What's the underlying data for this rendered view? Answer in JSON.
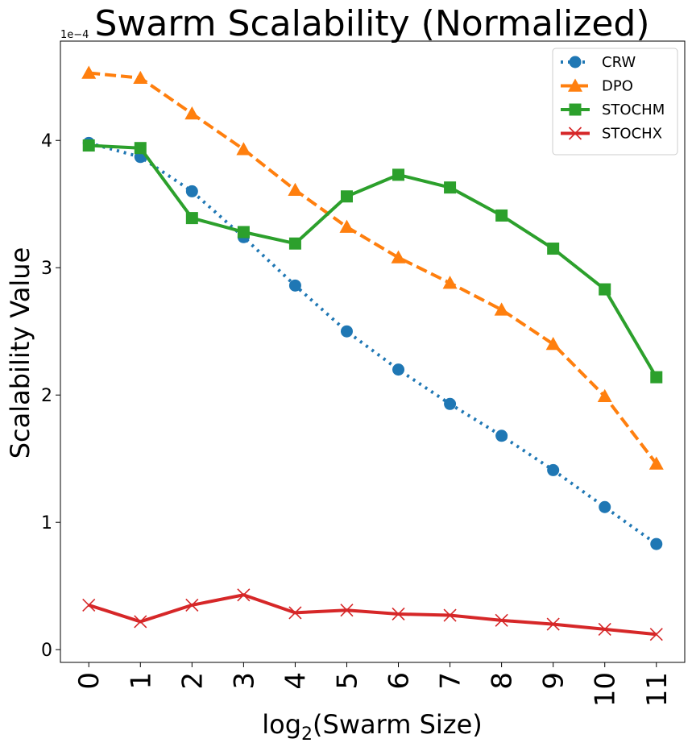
{
  "chart_data": {
    "type": "line",
    "title": "Swarm Scalability (Normalized)",
    "xlabel_prefix": "log",
    "xlabel_sub": "2",
    "xlabel_suffix": "(Swarm Size)",
    "ylabel": "Scalability Value",
    "y_multiplier_label": "1e−4",
    "x": [
      0,
      1,
      2,
      3,
      4,
      5,
      6,
      7,
      8,
      9,
      10,
      11
    ],
    "xtick_labels": [
      "0",
      "1",
      "2",
      "3",
      "4",
      "5",
      "6",
      "7",
      "8",
      "9",
      "10",
      "11"
    ],
    "yticks": [
      0,
      1,
      2,
      3,
      4
    ],
    "ytick_labels": [
      "0",
      "1",
      "2",
      "3",
      "4"
    ],
    "xlim": [
      -0.55,
      11.55
    ],
    "ylim": [
      -0.1,
      4.78
    ],
    "grid": false,
    "legend_position": "top-right",
    "series": [
      {
        "name": "CRW",
        "color": "#1f77b4",
        "dash": "dotted",
        "marker": "circle",
        "values": [
          3.98,
          3.87,
          3.6,
          3.24,
          2.86,
          2.5,
          2.2,
          1.93,
          1.68,
          1.41,
          1.12,
          0.83
        ]
      },
      {
        "name": "DPO",
        "color": "#ff7f0e",
        "dash": "dashed",
        "marker": "triangle",
        "values": [
          4.53,
          4.49,
          4.21,
          3.93,
          3.61,
          3.32,
          3.08,
          2.88,
          2.67,
          2.4,
          1.99,
          1.46
        ]
      },
      {
        "name": "STOCHM",
        "color": "#2ca02c",
        "dash": "solid",
        "marker": "square",
        "values": [
          3.96,
          3.94,
          3.39,
          3.28,
          3.19,
          3.56,
          3.73,
          3.63,
          3.41,
          3.15,
          2.83,
          2.14
        ]
      },
      {
        "name": "STOCHX",
        "color": "#d62728",
        "dash": "solid",
        "marker": "x",
        "values": [
          0.35,
          0.22,
          0.35,
          0.43,
          0.29,
          0.31,
          0.28,
          0.27,
          0.23,
          0.2,
          0.16,
          0.12
        ]
      }
    ]
  }
}
